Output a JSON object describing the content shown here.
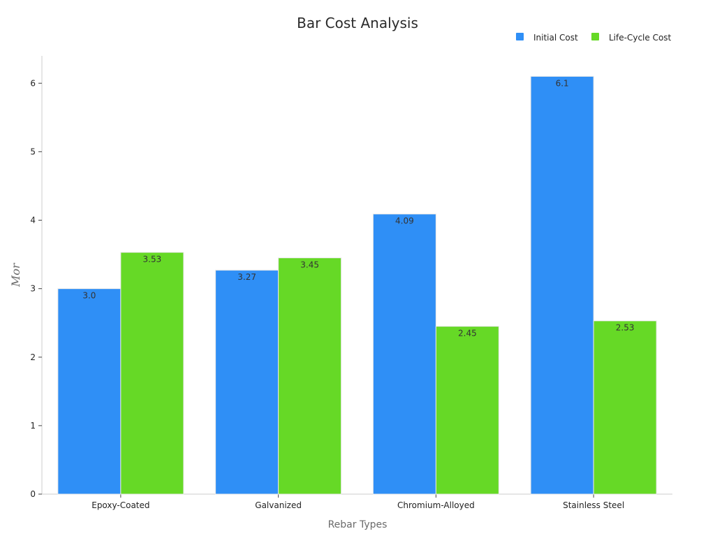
{
  "chart_data": {
    "type": "bar",
    "title": "Bar Cost Analysis",
    "xlabel": "Rebar Types",
    "ylabel": "Mor",
    "categories": [
      "Epoxy-Coated",
      "Galvanized",
      "Chromium-Alloyed",
      "Stainless Steel"
    ],
    "series": [
      {
        "name": "Initial Cost",
        "color": "#2f8ff6",
        "values": [
          3.0,
          3.27,
          4.09,
          6.1
        ],
        "labels": [
          "3.0",
          "3.27",
          "4.09",
          "6.1"
        ]
      },
      {
        "name": "Life-Cycle Cost",
        "color": "#66d926",
        "values": [
          3.53,
          3.45,
          2.45,
          2.53
        ],
        "labels": [
          "3.53",
          "3.45",
          "2.45",
          "2.53"
        ]
      }
    ],
    "ylim": [
      0,
      6.4
    ],
    "yticks": [
      0,
      1,
      2,
      3,
      4,
      5,
      6
    ],
    "grid": false,
    "legend_position": "top-right"
  }
}
